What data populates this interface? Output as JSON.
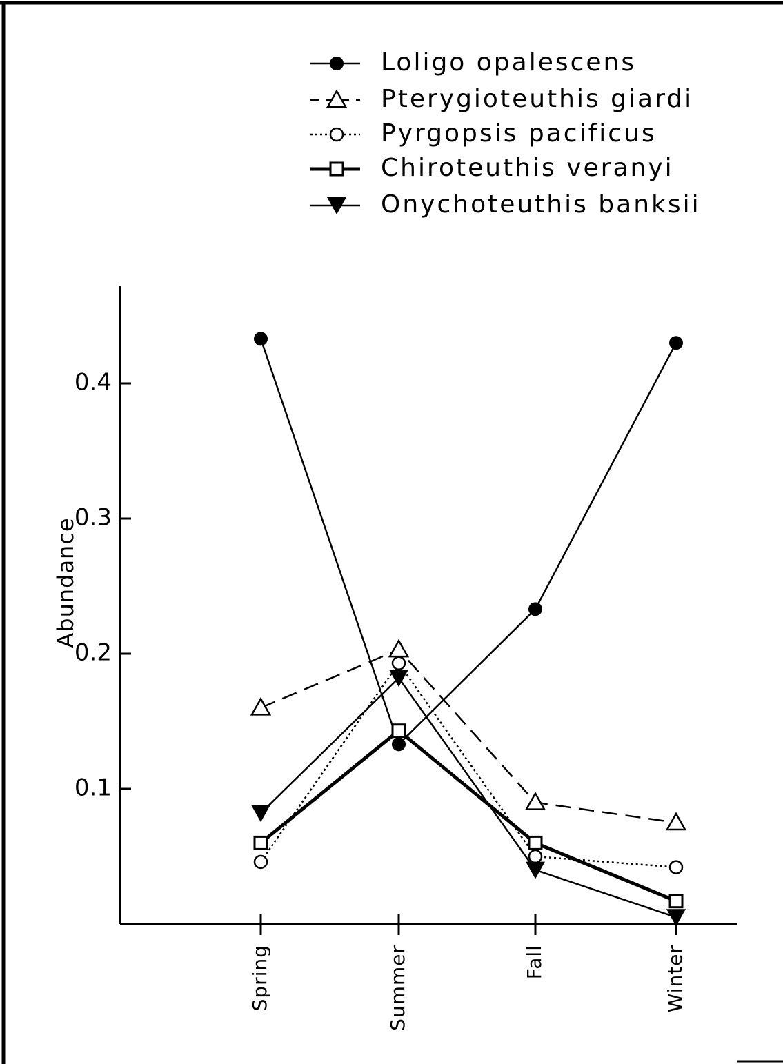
{
  "chart_data": {
    "type": "line",
    "title": "",
    "xlabel": "",
    "ylabel": "Abundance",
    "categories": [
      "Spring",
      "Summer",
      "Fall",
      "Winter"
    ],
    "ylim": [
      0,
      0.47
    ],
    "yticks": [
      0.1,
      0.2,
      0.3,
      0.4
    ],
    "ytick_labels": [
      "0.1",
      "0.2",
      "0.3",
      "0.4"
    ],
    "grid": false,
    "legend_position": "top-right",
    "series": [
      {
        "name": "Loligo opalescens",
        "marker": "filled-circle",
        "line_style": "solid-thin",
        "values": [
          0.433,
          0.133,
          0.233,
          0.43
        ]
      },
      {
        "name": "Pterygioteuthis giardi",
        "marker": "open-triangle",
        "line_style": "dashed",
        "values": [
          0.16,
          0.203,
          0.09,
          0.075
        ]
      },
      {
        "name": "Pyrgopsis pacificus",
        "marker": "open-circle",
        "line_style": "dotted",
        "values": [
          0.046,
          0.193,
          0.05,
          0.042
        ]
      },
      {
        "name": "Chiroteuthis veranyi",
        "marker": "open-square",
        "line_style": "solid-thick",
        "values": [
          0.06,
          0.143,
          0.06,
          0.017
        ]
      },
      {
        "name": "Onychoteuthis banksii",
        "marker": "filled-triangle-down",
        "line_style": "solid-thin",
        "values": [
          0.082,
          0.182,
          0.04,
          0.005
        ]
      }
    ]
  }
}
